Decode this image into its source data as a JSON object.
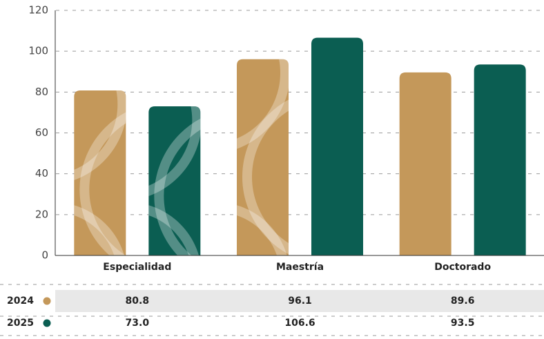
{
  "chart_data": {
    "type": "bar",
    "categories": [
      "Especialidad",
      "Maestría",
      "Doctorado"
    ],
    "series": [
      {
        "name": "2024",
        "color": "#c4985a",
        "values": [
          80.8,
          96.1,
          89.6
        ],
        "value_labels": [
          "80.8",
          "96.1",
          "89.6"
        ]
      },
      {
        "name": "2025",
        "color": "#0b5e52",
        "values": [
          73.0,
          106.6,
          93.5
        ],
        "value_labels": [
          "73.0",
          "106.6",
          "93.5"
        ]
      }
    ],
    "ylim": [
      0,
      120
    ],
    "yticks": [
      0,
      20,
      40,
      60,
      80,
      100,
      120
    ],
    "grid": true
  }
}
